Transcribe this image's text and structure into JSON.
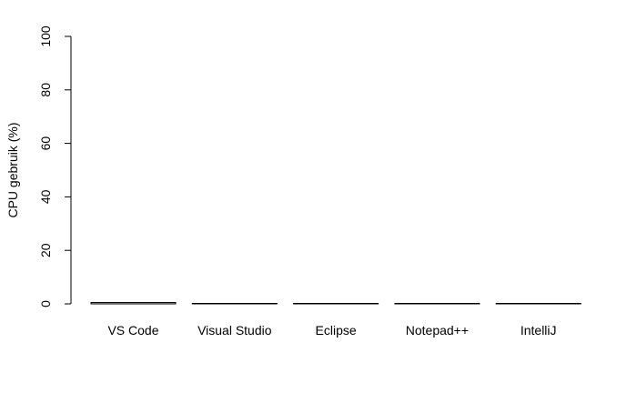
{
  "chart_data": {
    "type": "bar",
    "title": "",
    "xlabel": "",
    "ylabel": "CPU gebruik (%)",
    "ylim": [
      0,
      100
    ],
    "yticks": [
      "0",
      "20",
      "40",
      "60",
      "80",
      "100"
    ],
    "categories": [
      "VS Code",
      "Visual Studio",
      "Eclipse",
      "Notepad++",
      "IntelliJ"
    ],
    "values": [
      0.5,
      0.1,
      0.1,
      0.1,
      0.1
    ],
    "grid": false,
    "bar_color": "#000000"
  }
}
